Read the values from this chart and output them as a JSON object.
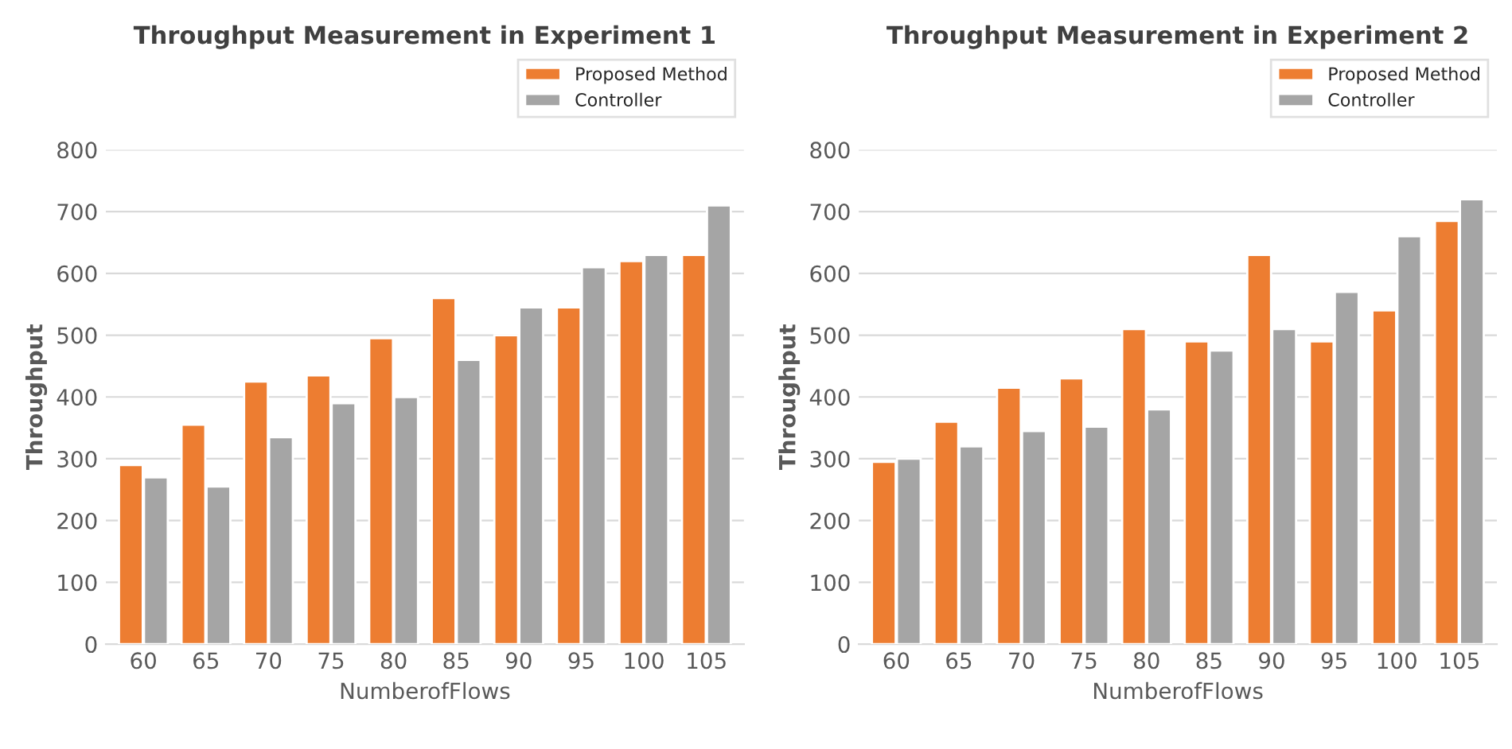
{
  "chart_data": [
    {
      "type": "bar",
      "title": "Throughput Measurement in Experiment 1",
      "xlabel": "NumberofFlows",
      "ylabel": "Throughput",
      "categories": [
        "60",
        "65",
        "70",
        "75",
        "80",
        "85",
        "90",
        "95",
        "100",
        "105"
      ],
      "series": [
        {
          "name": "Proposed Method",
          "color": "#ed7d31",
          "values": [
            290,
            355,
            425,
            435,
            495,
            560,
            500,
            545,
            620,
            630
          ]
        },
        {
          "name": "Controller",
          "color": "#a5a5a5",
          "values": [
            270,
            255,
            335,
            390,
            400,
            460,
            545,
            610,
            630,
            710
          ]
        }
      ],
      "ylim": [
        0,
        800
      ],
      "yticks": [
        0,
        100,
        200,
        300,
        400,
        500,
        600,
        700,
        800
      ],
      "grid": "y",
      "legend": "top right"
    },
    {
      "type": "bar",
      "title": "Throughput Measurement in Experiment 2",
      "xlabel": "NumberofFlows",
      "ylabel": "Throughput",
      "categories": [
        "60",
        "65",
        "70",
        "75",
        "80",
        "85",
        "90",
        "95",
        "100",
        "105"
      ],
      "series": [
        {
          "name": "Proposed Method",
          "color": "#ed7d31",
          "values": [
            295,
            360,
            415,
            430,
            510,
            490,
            630,
            490,
            540,
            685
          ]
        },
        {
          "name": "Controller",
          "color": "#a5a5a5",
          "values": [
            300,
            320,
            345,
            352,
            380,
            475,
            510,
            570,
            660,
            720
          ]
        }
      ],
      "ylim": [
        0,
        800
      ],
      "yticks": [
        0,
        100,
        200,
        300,
        400,
        500,
        600,
        700,
        800
      ],
      "grid": "y",
      "legend": "top right"
    }
  ]
}
